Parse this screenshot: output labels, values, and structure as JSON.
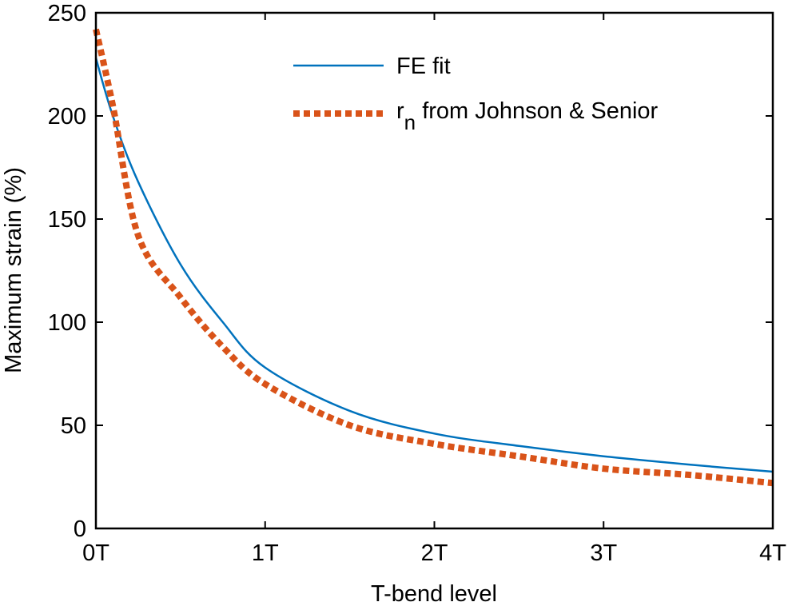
{
  "chart_data": {
    "type": "line",
    "title": "",
    "xlabel": "T-bend level",
    "ylabel": "Maximum strain (%)",
    "xlim": [
      0,
      4
    ],
    "ylim": [
      0,
      250
    ],
    "x_ticks": [
      0,
      1,
      2,
      3,
      4
    ],
    "x_tick_labels": [
      "0T",
      "1T",
      "2T",
      "3T",
      "4T"
    ],
    "y_ticks": [
      0,
      50,
      100,
      150,
      200,
      250
    ],
    "y_tick_labels": [
      "0",
      "50",
      "100",
      "150",
      "200",
      "250"
    ],
    "grid": false,
    "legend_position": "top-right",
    "series": [
      {
        "name": "FE fit",
        "style": "solid",
        "color": "#0072BD",
        "x": [
          0,
          0.1,
          0.25,
          0.5,
          0.75,
          1,
          1.5,
          2,
          2.5,
          3,
          3.5,
          4
        ],
        "y": [
          228,
          200,
          168,
          128,
          100,
          78,
          57,
          46,
          40,
          35,
          31,
          27.5
        ]
      },
      {
        "name": "r",
        "name_subscript": "n",
        "name_suffix": " from Johnson & Senior",
        "style": "dotted",
        "color": "#D95319",
        "x": [
          0,
          0.1,
          0.25,
          0.5,
          0.75,
          1,
          1.5,
          2,
          2.5,
          3,
          3.5,
          4
        ],
        "y": [
          242,
          205,
          142,
          112,
          88,
          70,
          50,
          41,
          35,
          29,
          26,
          22
        ]
      }
    ]
  }
}
